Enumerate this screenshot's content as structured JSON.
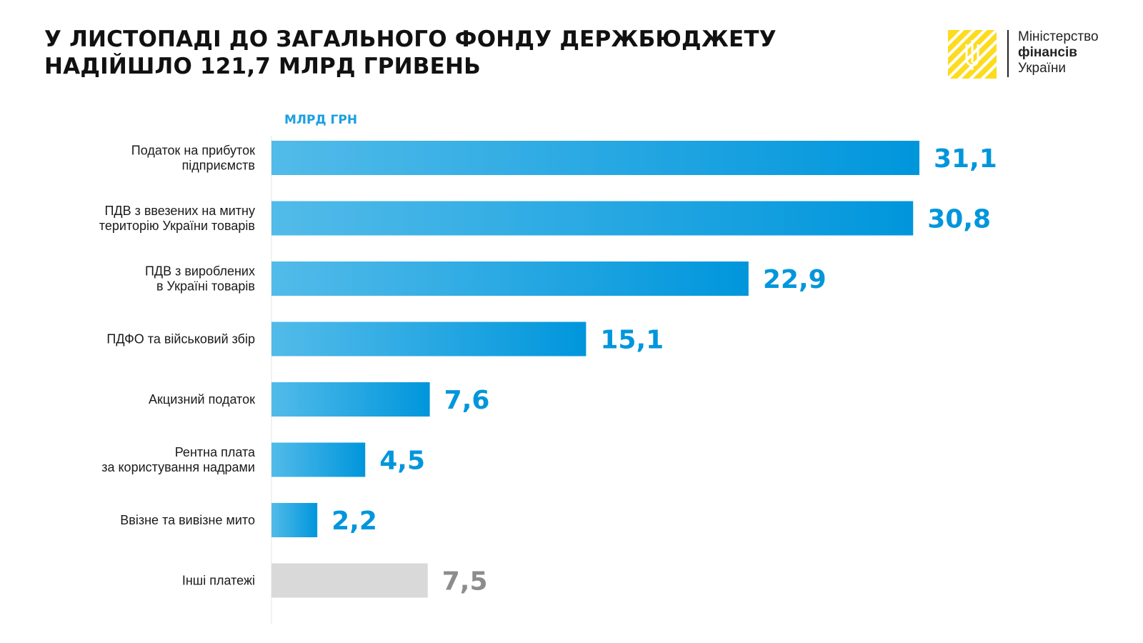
{
  "header": {
    "title_line1": "У ЛИСТОПАДІ ДО ЗАГАЛЬНОГО ФОНДУ ДЕРЖБЮДЖЕТУ",
    "title_line2": "НАДІЙШЛО 121,7 МЛРД ГРИВЕНЬ"
  },
  "logo": {
    "icon": "trident-emblem-icon",
    "line1": "Міністерство",
    "line2": "фінансів",
    "line3": "України"
  },
  "colors": {
    "accent": "#0096dc",
    "accent_light": "#52bbe9",
    "other": "#d9d9d9",
    "other_value": "#8c8c8c",
    "logo_yellow": "#fddb1f"
  },
  "chart_data": {
    "type": "bar",
    "orientation": "horizontal",
    "unit_label": "МЛРД ГРН",
    "categories": [
      [
        "Податок на прибуток",
        "підприємств"
      ],
      [
        "ПДВ з ввезених на митну",
        "територію України товарів"
      ],
      [
        "ПДВ з вироблених",
        "в Україні товарів"
      ],
      [
        "ПДФО та військовий збір"
      ],
      [
        "Акцизний податок"
      ],
      [
        "Рентна плата",
        "за користування надрами"
      ],
      [
        "Ввізне та вивізне мито"
      ],
      [
        "Інші платежі"
      ]
    ],
    "values": [
      31.1,
      30.8,
      22.9,
      15.1,
      7.6,
      4.5,
      2.2,
      7.5
    ],
    "value_labels": [
      "31,1",
      "30,8",
      "22,9",
      "15,1",
      "7,6",
      "4,5",
      "2,2",
      "7,5"
    ],
    "highlight": [
      "blue",
      "blue",
      "blue",
      "blue",
      "blue",
      "blue",
      "blue",
      "grey"
    ],
    "xlim": [
      0,
      31.1
    ],
    "grid": false,
    "legend": "none"
  }
}
